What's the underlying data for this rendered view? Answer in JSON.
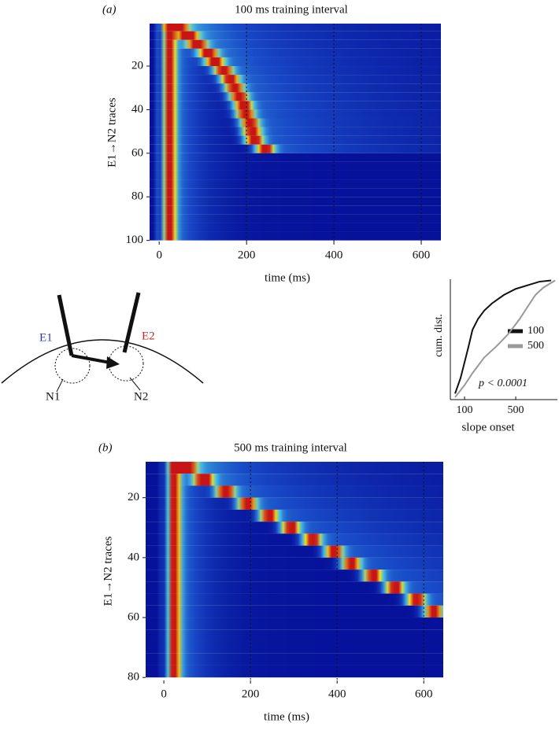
{
  "chart_data": [
    {
      "type": "heatmap",
      "label": "(a)",
      "title": "100 ms training interval",
      "xlabel": "time (ms)",
      "ylabel": "E1→N2 traces",
      "xlim": [
        -22,
        645
      ],
      "ylim": [
        0.5,
        100.5
      ],
      "xticks": [
        0,
        200,
        400,
        600
      ],
      "yticks": [
        20,
        40,
        60,
        80,
        100
      ],
      "vlines": [
        200,
        400,
        600
      ],
      "rows": [
        2,
        6,
        10,
        14,
        18,
        22,
        26,
        30,
        34,
        38,
        42,
        46,
        50,
        54,
        58,
        62,
        66,
        70,
        74,
        78,
        82,
        86,
        90,
        94,
        98
      ],
      "peak": [
        40,
        65,
        85,
        110,
        125,
        145,
        160,
        170,
        180,
        190,
        195,
        205,
        210,
        215,
        240,
        null,
        null,
        null,
        null,
        null,
        null,
        null,
        null,
        null,
        null
      ]
    },
    {
      "type": "line",
      "xlabel": "slope onset",
      "ylabel": "cum. dist.",
      "annotation": "p < 0.0001",
      "xlim": [
        -11,
        826
      ],
      "ylim": [
        0,
        1
      ],
      "xticks": [
        100,
        500
      ],
      "series": [
        {
          "name": "100",
          "color": "#111111",
          "x": [
            26,
            69,
            100,
            131,
            162,
            205,
            254,
            315,
            408,
            500,
            592,
            685,
            777
          ],
          "values": [
            0.05,
            0.18,
            0.31,
            0.44,
            0.58,
            0.67,
            0.74,
            0.8,
            0.87,
            0.92,
            0.95,
            0.98,
            0.99
          ]
        },
        {
          "name": "500",
          "color": "#999999",
          "x": [
            26,
            100,
            162,
            254,
            346,
            438,
            531,
            592,
            654,
            715,
            808
          ],
          "values": [
            0.02,
            0.12,
            0.22,
            0.35,
            0.44,
            0.54,
            0.67,
            0.77,
            0.87,
            0.93,
            0.99
          ]
        }
      ]
    },
    {
      "type": "heatmap",
      "label": "(b)",
      "title": "500 ms training interval",
      "xlabel": "time (ms)",
      "ylabel": "E1→N2 traces",
      "xlim": [
        -42,
        645
      ],
      "ylim": [
        8,
        81
      ],
      "xticks": [
        0,
        200,
        400,
        600
      ],
      "yticks": [
        20,
        40,
        60,
        80
      ],
      "vlines": [
        200,
        400,
        600
      ],
      "rows": [
        10,
        14,
        18,
        22,
        26,
        30,
        34,
        38,
        42,
        46,
        50,
        54,
        58,
        62,
        66,
        70,
        74,
        78
      ],
      "peak": [
        50,
        90,
        140,
        190,
        240,
        290,
        340,
        390,
        430,
        480,
        530,
        580,
        620,
        null,
        null,
        null,
        null,
        null
      ]
    }
  ],
  "diagram": {
    "e1": "E1",
    "e2": "E2",
    "n1": "N1",
    "n2": "N2"
  }
}
